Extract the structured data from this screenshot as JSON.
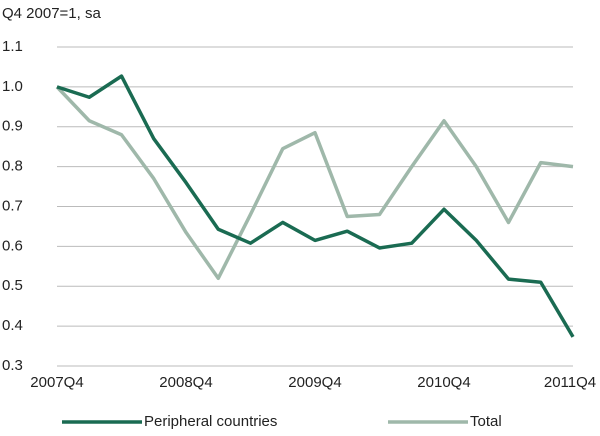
{
  "chart_data": {
    "type": "line",
    "y_axis_label": "Q4 2007=1, sa",
    "categories": [
      "2007Q4",
      null,
      null,
      null,
      "2008Q4",
      null,
      null,
      null,
      "2009Q4",
      null,
      null,
      null,
      "2010Q4",
      null,
      null,
      null,
      "2011Q4"
    ],
    "series": [
      {
        "name": "Peripheral countries",
        "color": "#1a6b52",
        "values": [
          1.0,
          0.974,
          1.027,
          0.87,
          0.76,
          0.643,
          0.608,
          0.66,
          0.615,
          0.638,
          0.596,
          0.608,
          0.693,
          0.615,
          0.518,
          0.51,
          0.373
        ]
      },
      {
        "name": "Total",
        "color": "#9fb8aa",
        "values": [
          1.0,
          0.915,
          0.88,
          0.77,
          0.635,
          0.52,
          0.68,
          0.845,
          0.885,
          0.675,
          0.68,
          0.8,
          0.915,
          0.8,
          0.66,
          0.81,
          0.8
        ]
      }
    ],
    "ylim": [
      0.3,
      1.1
    ],
    "yticks": [
      0.3,
      0.4,
      0.5,
      0.6,
      0.7,
      0.8,
      0.9,
      {
        "value": 1,
        "label": "1.0"
      },
      1.1
    ],
    "grid": true,
    "legend": "bottom"
  }
}
